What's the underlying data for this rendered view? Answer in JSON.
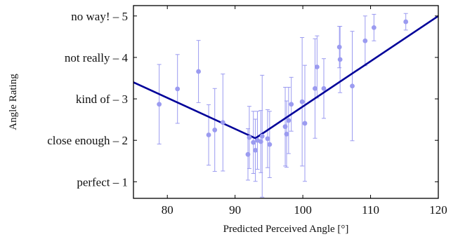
{
  "chart_data": {
    "type": "scatter",
    "xlabel": "Predicted Perceived Angle [°]",
    "ylabel": "Angle Rating",
    "xlim": [
      75,
      120
    ],
    "ylim": [
      0.6,
      5.25
    ],
    "x_ticks": [
      80,
      90,
      100,
      110,
      120
    ],
    "x_tick_labels": [
      "80",
      "90",
      "100",
      "110",
      "120"
    ],
    "y_ticks": [
      1,
      2,
      3,
      4,
      5
    ],
    "y_tick_labels": [
      "perfect – 1",
      "close enough – 2",
      "kind of – 3",
      "not really – 4",
      "no way! – 5"
    ],
    "grid": false,
    "colors": {
      "points": "#9b9bf0",
      "fit_line": "#000099",
      "axis": "#000000"
    },
    "points": [
      {
        "x": 78.8,
        "y": 2.87,
        "err": 0.96
      },
      {
        "x": 81.5,
        "y": 3.24,
        "err": 0.83
      },
      {
        "x": 84.6,
        "y": 3.66,
        "err": 0.75
      },
      {
        "x": 86.1,
        "y": 2.13,
        "err": 0.73
      },
      {
        "x": 87.0,
        "y": 2.25,
        "err": 1.0
      },
      {
        "x": 88.2,
        "y": 2.43,
        "err": 1.17
      },
      {
        "x": 91.9,
        "y": 1.66,
        "err": 0.62
      },
      {
        "x": 92.1,
        "y": 2.07,
        "err": 0.75
      },
      {
        "x": 92.7,
        "y": 1.95,
        "err": 0.75
      },
      {
        "x": 93.0,
        "y": 1.76,
        "err": 0.75
      },
      {
        "x": 93.3,
        "y": 2.0,
        "err": 0.7
      },
      {
        "x": 93.8,
        "y": 1.97,
        "err": 0.75
      },
      {
        "x": 94.0,
        "y": 2.1,
        "err": 1.47
      },
      {
        "x": 94.8,
        "y": 2.04,
        "err": 0.7
      },
      {
        "x": 95.1,
        "y": 1.9,
        "err": 0.8
      },
      {
        "x": 97.4,
        "y": 2.33,
        "err": 0.95
      },
      {
        "x": 97.6,
        "y": 2.15,
        "err": 0.8
      },
      {
        "x": 97.9,
        "y": 2.48,
        "err": 0.8
      },
      {
        "x": 98.3,
        "y": 2.87,
        "err": 0.65
      },
      {
        "x": 99.9,
        "y": 2.93,
        "err": 1.55
      },
      {
        "x": 100.3,
        "y": 2.41,
        "err": 1.4
      },
      {
        "x": 101.8,
        "y": 3.25,
        "err": 1.2
      },
      {
        "x": 102.1,
        "y": 3.77,
        "err": 0.75
      },
      {
        "x": 103.1,
        "y": 3.25,
        "err": 0.72
      },
      {
        "x": 105.4,
        "y": 4.25,
        "err": 0.5
      },
      {
        "x": 105.5,
        "y": 3.95,
        "err": 0.8
      },
      {
        "x": 107.3,
        "y": 3.31,
        "err": 1.32
      },
      {
        "x": 109.2,
        "y": 4.4,
        "err": 0.6
      },
      {
        "x": 110.5,
        "y": 4.72,
        "err": 0.32
      },
      {
        "x": 115.2,
        "y": 4.86,
        "err": 0.2
      }
    ],
    "fit_line": [
      {
        "x": 75,
        "y": 3.4
      },
      {
        "x": 93,
        "y": 2.05
      },
      {
        "x": 120,
        "y": 5.0
      }
    ]
  }
}
